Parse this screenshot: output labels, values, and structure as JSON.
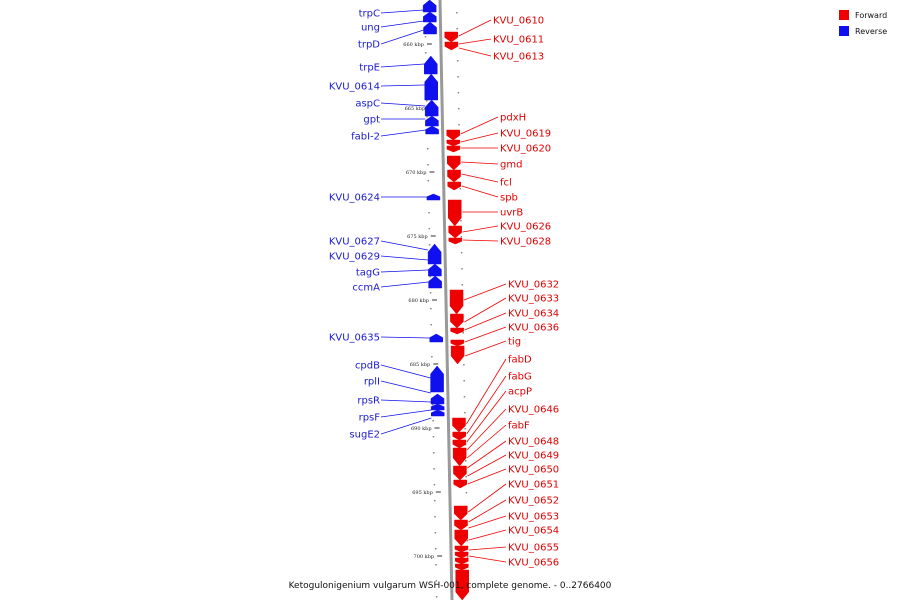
{
  "caption": "Ketogulonigenium vulgarum WSH-001, complete genome. - 0..2766400",
  "legend": {
    "forward": {
      "label": "Forward",
      "color": "#ee0000"
    },
    "reverse": {
      "label": "Reverse",
      "color": "#1010ee"
    }
  },
  "backbone_color": "#999999",
  "ticks": [
    "660 kbp",
    "665 kbp",
    "670 kbp",
    "675 kbp",
    "680 kbp",
    "685 kbp",
    "690 kbp",
    "695 kbp",
    "700 kbp"
  ],
  "reverse_genes": [
    "trpC",
    "ung",
    "trpD",
    "trpE",
    "KVU_0614",
    "aspC",
    "gpt",
    "fabI-2",
    "KVU_0624",
    "KVU_0627",
    "KVU_0629",
    "tagG",
    "ccmA",
    "KVU_0635",
    "cpdB",
    "rplI",
    "rpsR",
    "rpsF",
    "sugE2"
  ],
  "forward_genes": [
    "KVU_0610",
    "KVU_0611",
    "KVU_0613",
    "pdxH",
    "KVU_0619",
    "KVU_0620",
    "gmd",
    "fcl",
    "spb",
    "uvrB",
    "KVU_0626",
    "KVU_0628",
    "KVU_0632",
    "KVU_0633",
    "KVU_0634",
    "KVU_0636",
    "tig",
    "fabD",
    "fabG",
    "acpP",
    "KVU_0646",
    "fabF",
    "KVU_0648",
    "KVU_0649",
    "KVU_0650",
    "KVU_0651",
    "KVU_0652",
    "KVU_0653",
    "KVU_0654",
    "KVU_0655",
    "KVU_0656"
  ]
}
